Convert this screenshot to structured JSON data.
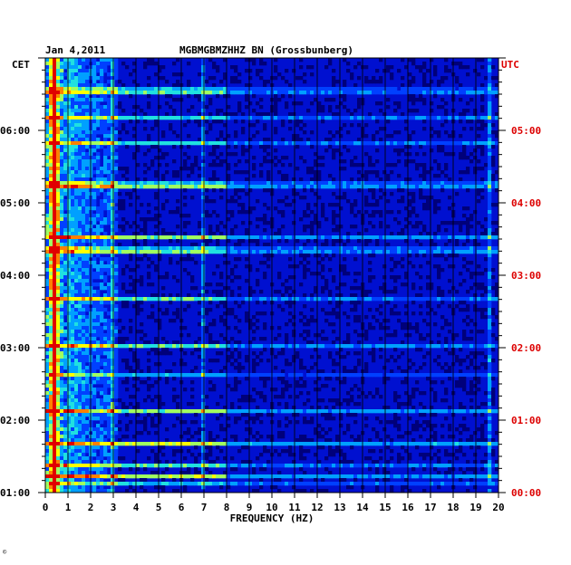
{
  "header": {
    "date": "Jan 4,2011",
    "station": "MGBMGBMZHHZ BN (Grossbunberg)"
  },
  "chart_data": {
    "type": "heatmap",
    "title": "MGBMGBMZHHZ BN (Grossbunberg)",
    "subtitle": "Jan 4,2011",
    "xlabel": "FREQUENCY (HZ)",
    "xlim": [
      0,
      20
    ],
    "x_ticks": [
      "0",
      "1",
      "2",
      "3",
      "4",
      "5",
      "6",
      "7",
      "8",
      "9",
      "10",
      "11",
      "12",
      "13",
      "14",
      "15",
      "16",
      "17",
      "18",
      "19",
      "20"
    ],
    "left_axis": {
      "label": "CET",
      "color": "#000000",
      "ticks": [
        {
          "label": "06:00",
          "hours_from_bottom": 5
        },
        {
          "label": "05:00",
          "hours_from_bottom": 4
        },
        {
          "label": "04:00",
          "hours_from_bottom": 3
        },
        {
          "label": "03:00",
          "hours_from_bottom": 2
        },
        {
          "label": "02:00",
          "hours_from_bottom": 1
        },
        {
          "label": "01:00",
          "hours_from_bottom": 0
        }
      ]
    },
    "right_axis": {
      "label": "UTC",
      "color": "#dd0000",
      "ticks": [
        {
          "label": "05:00",
          "hours_from_bottom": 5
        },
        {
          "label": "04:00",
          "hours_from_bottom": 4
        },
        {
          "label": "03:00",
          "hours_from_bottom": 3
        },
        {
          "label": "02:00",
          "hours_from_bottom": 2
        },
        {
          "label": "01:00",
          "hours_from_bottom": 1
        },
        {
          "label": "00:00",
          "hours_from_bottom": 0
        }
      ]
    },
    "time_span_hours": 6,
    "grid": true,
    "colormap": [
      "#00007a",
      "#0010d0",
      "#0040ff",
      "#00a0ff",
      "#20e0e0",
      "#a0ff60",
      "#ffff00",
      "#ff8000",
      "#e00000"
    ],
    "spectral_lines_hz": [
      0.4,
      2.9,
      7.0,
      19.6
    ]
  },
  "footnote": "©"
}
